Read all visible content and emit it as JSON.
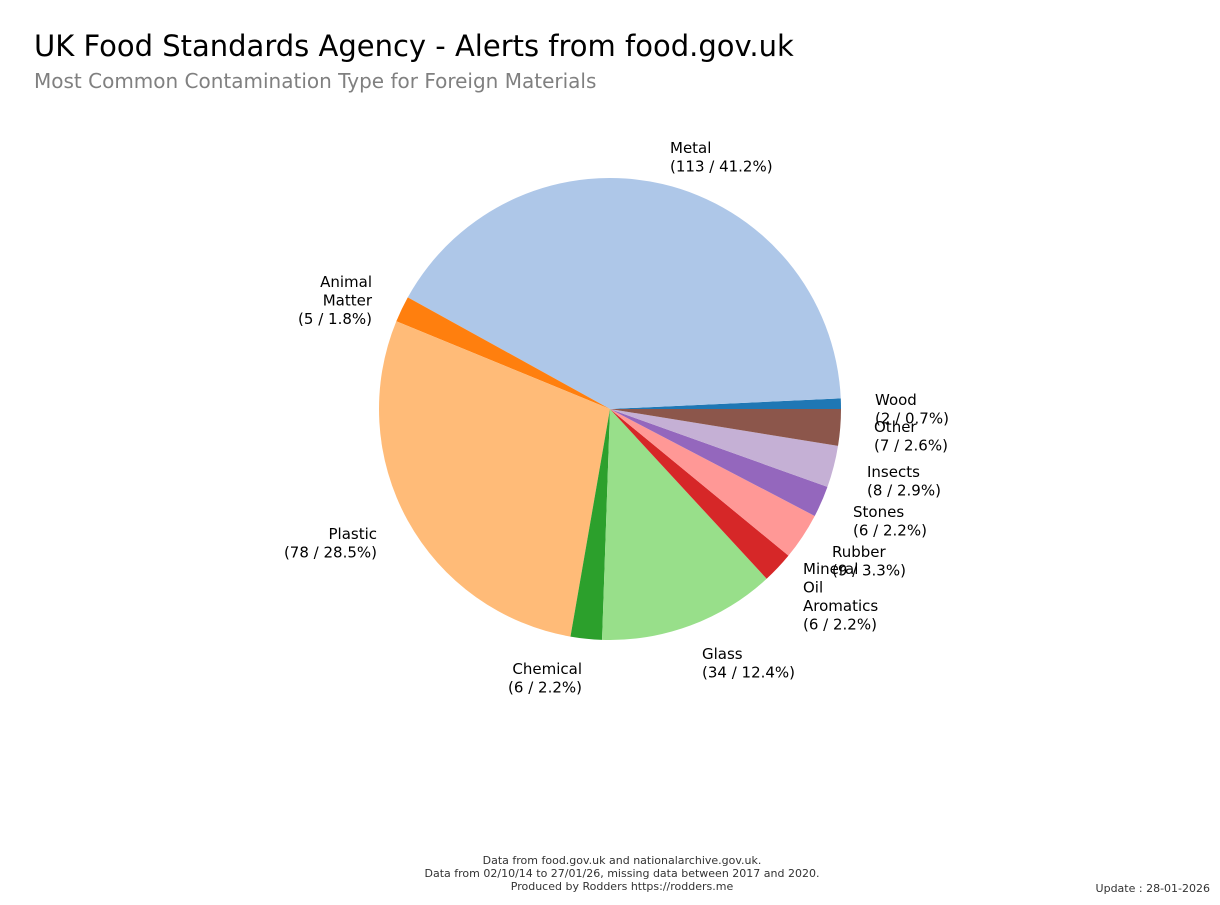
{
  "header": {
    "title": "UK Food Standards Agency - Alerts from food.gov.uk",
    "subtitle": "Most Common Contamination Type for Foreign Materials"
  },
  "chart_data": {
    "type": "pie",
    "title": "UK Food Standards Agency - Alerts from food.gov.uk",
    "subtitle": "Most Common Contamination Type for Foreign Materials",
    "start_angle_deg": 0,
    "direction": "counterclockwise",
    "slices": [
      {
        "name": "Wood",
        "value": 2,
        "percent": "0.7%",
        "label_lines": [
          "Wood",
          "(2 / 0.7%)"
        ],
        "color": "#1f77b4"
      },
      {
        "name": "Metal",
        "value": 113,
        "percent": "41.2%",
        "label_lines": [
          "Metal",
          "(113 / 41.2%)"
        ],
        "color": "#aec7e8"
      },
      {
        "name": "Animal Matter",
        "value": 5,
        "percent": "1.8%",
        "label_lines": [
          "Animal",
          "Matter",
          "(5 / 1.8%)"
        ],
        "color": "#ff7f0e"
      },
      {
        "name": "Plastic",
        "value": 78,
        "percent": "28.5%",
        "label_lines": [
          "Plastic",
          "(78 / 28.5%)"
        ],
        "color": "#ffbb78"
      },
      {
        "name": "Chemical",
        "value": 6,
        "percent": "2.2%",
        "label_lines": [
          "Chemical",
          "(6 / 2.2%)"
        ],
        "color": "#2ca02c"
      },
      {
        "name": "Glass",
        "value": 34,
        "percent": "12.4%",
        "label_lines": [
          "Glass",
          "(34 / 12.4%)"
        ],
        "color": "#98df8a"
      },
      {
        "name": "Mineral Oil Aromatics",
        "value": 6,
        "percent": "2.2%",
        "label_lines": [
          "Mineral",
          "Oil",
          "Aromatics",
          "(6 / 2.2%)"
        ],
        "color": "#d62728"
      },
      {
        "name": "Rubber",
        "value": 9,
        "percent": "3.3%",
        "label_lines": [
          "Rubber",
          "(9 / 3.3%)"
        ],
        "color": "#ff9896"
      },
      {
        "name": "Stones",
        "value": 6,
        "percent": "2.2%",
        "label_lines": [
          "Stones",
          "(6 / 2.2%)"
        ],
        "color": "#9467bd"
      },
      {
        "name": "Insects",
        "value": 8,
        "percent": "2.9%",
        "label_lines": [
          "Insects",
          "(8 / 2.9%)"
        ],
        "color": "#c5b0d5"
      },
      {
        "name": "Other",
        "value": 7,
        "percent": "2.6%",
        "label_lines": [
          "Other",
          "(7 / 2.6%)"
        ],
        "color": "#8c564b"
      }
    ]
  },
  "footer": {
    "line1": "Data from food.gov.uk and nationalarchive.gov.uk.",
    "line2": "Data from 02/10/14 to 27/01/26, missing data between 2017 and 2020.",
    "line3": "Produced by Rodders https://rodders.me",
    "update": "Update : 28-01-2026"
  }
}
